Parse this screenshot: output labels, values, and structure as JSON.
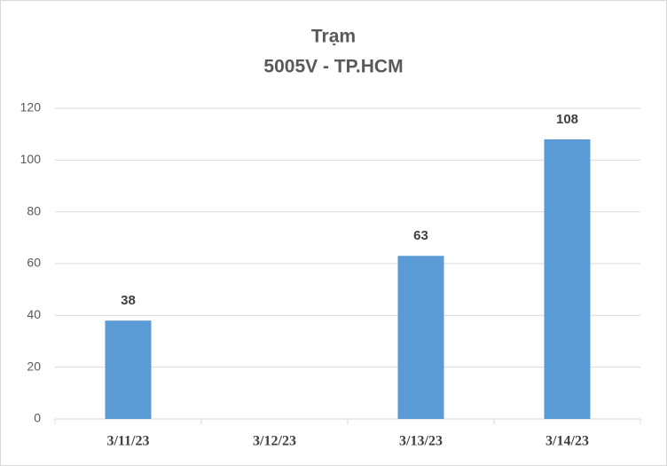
{
  "chart_data": {
    "type": "bar",
    "title": "Trạm",
    "subtitle": "5005V - TP.HCM",
    "categories": [
      "3/11/23",
      "3/12/23",
      "3/13/23",
      "3/14/23"
    ],
    "values": [
      38,
      null,
      63,
      108
    ],
    "color": "#5b9bd5",
    "ylim": [
      0,
      120
    ],
    "yticks": [
      0,
      20,
      40,
      60,
      80,
      100,
      120
    ],
    "grid": true
  }
}
